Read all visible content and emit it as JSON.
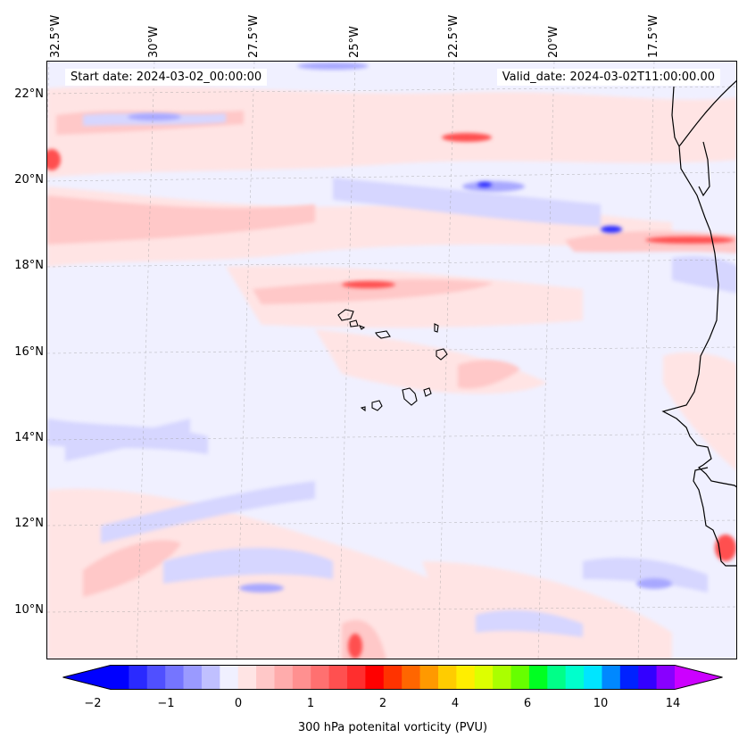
{
  "header": {
    "start_date": "Start date: 2024-03-02_00:00:00",
    "valid_date": "Valid_date: 2024-03-02T11:00:00.00"
  },
  "lon_labels": [
    "32.5°W",
    "30°W",
    "27.5°W",
    "25°W",
    "22.5°W",
    "20°W",
    "17.5°W"
  ],
  "lat_labels": [
    "22°N",
    "20°N",
    "18°N",
    "16°N",
    "14°N",
    "12°N",
    "10°N"
  ],
  "colorbar": {
    "title": "300 hPa potenital vorticity (PVU)",
    "ticks": [
      "−2",
      "−1",
      "0",
      "1",
      "2",
      "4",
      "6",
      "10",
      "14"
    ],
    "colors": [
      "#0000ff",
      "#2a2aff",
      "#5050ff",
      "#7575ff",
      "#9a9aff",
      "#c0c0ff",
      "#f0f0ff",
      "#ffe4e4",
      "#ffc8c8",
      "#ffacac",
      "#ff9090",
      "#ff7070",
      "#ff5050",
      "#ff2e2e",
      "#ff0000",
      "#ff3300",
      "#ff6600",
      "#ff9900",
      "#ffcc00",
      "#ffee00",
      "#ddff00",
      "#aaff00",
      "#66ff00",
      "#00ff22",
      "#00ff88",
      "#00ffcc",
      "#00e5ff",
      "#0088ff",
      "#0022ff",
      "#3300ff",
      "#8800ff"
    ],
    "extend_min_color": "#0000ff",
    "extend_max_color": "#cc00ff"
  },
  "colors": {
    "weak_negative": "#d6d6ff",
    "neg_mid": "#a8a8ff",
    "neg_strong": "#3030ff",
    "weak_positive": "#ffe4e4",
    "pos_mid": "#ffbcbc",
    "pos_strong": "#ff5050",
    "coast": "#000000"
  }
}
